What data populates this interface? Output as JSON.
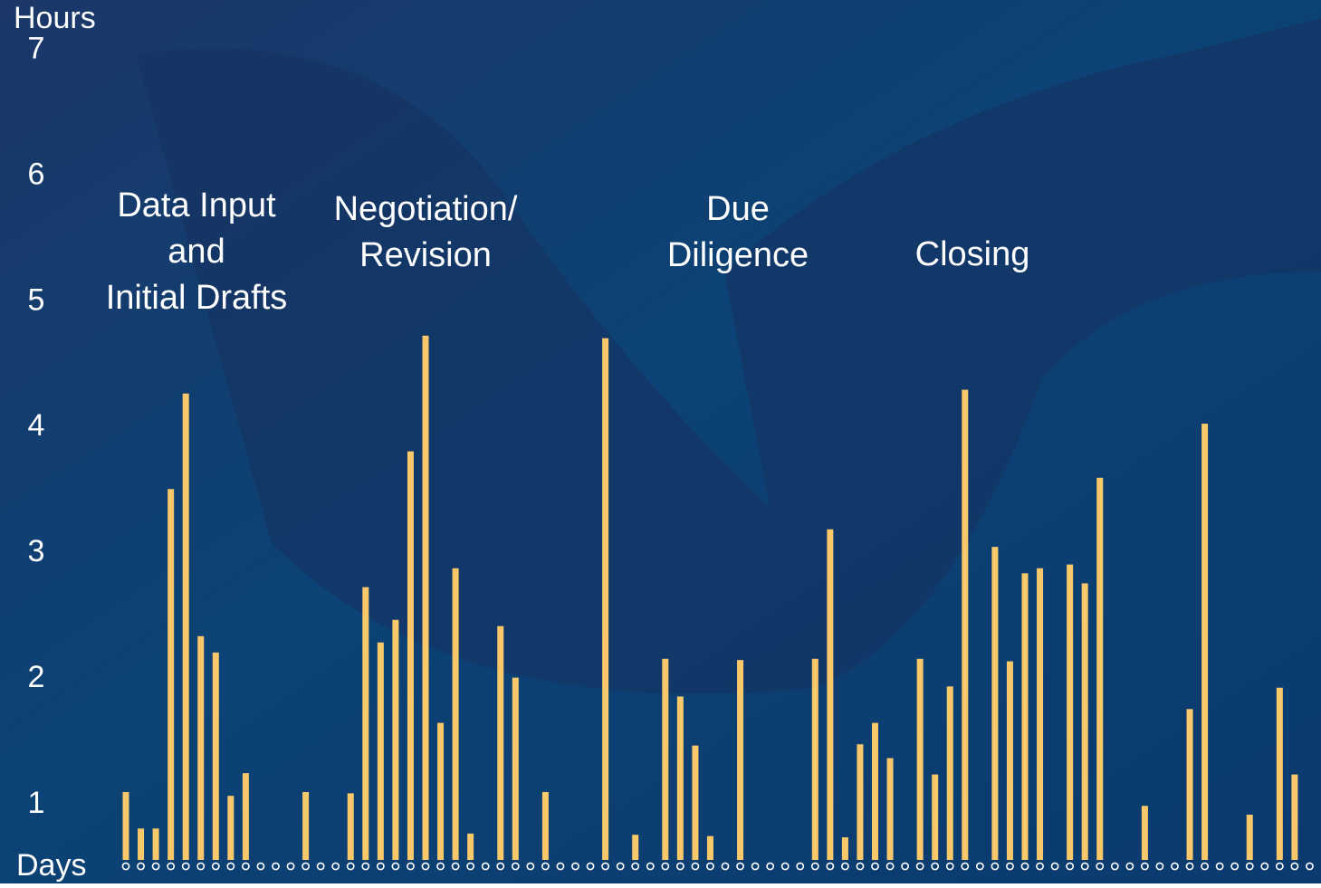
{
  "chart_data": {
    "type": "bar",
    "y_label": "Hours",
    "x_label": "Days",
    "annotations": [
      [
        "Data Input",
        "and",
        "Initial Drafts"
      ],
      [
        "Negotiation/",
        "Revision"
      ],
      [
        "Due",
        "Diligence"
      ],
      [
        "Closing"
      ]
    ],
    "categories": [
      null,
      null,
      null,
      null,
      null,
      null,
      null,
      null,
      null,
      null,
      null,
      null,
      null,
      null,
      null,
      null,
      null,
      null,
      null,
      null,
      null,
      null,
      null,
      null,
      null,
      null,
      null,
      null,
      null,
      null,
      null,
      null,
      null,
      null,
      null,
      null,
      null,
      null,
      null,
      null,
      null,
      null,
      null,
      null,
      null,
      null,
      null,
      null,
      null,
      null,
      null,
      null,
      null,
      null,
      null,
      null,
      null,
      null,
      null,
      null,
      null,
      null,
      null,
      null,
      null,
      null,
      null,
      null,
      null,
      null,
      null,
      null,
      null,
      null,
      null,
      null,
      null,
      null,
      null,
      null
    ],
    "values": [
      1.1,
      0.81,
      0.81,
      3.51,
      4.27,
      2.34,
      2.21,
      1.07,
      1.25,
      null,
      null,
      null,
      1.1,
      null,
      null,
      1.09,
      2.73,
      2.29,
      2.47,
      3.81,
      4.73,
      1.65,
      2.88,
      0.77,
      null,
      2.42,
      2.01,
      null,
      1.1,
      null,
      null,
      null,
      4.71,
      null,
      0.76,
      null,
      2.16,
      1.86,
      1.47,
      0.75,
      null,
      2.15,
      null,
      null,
      null,
      null,
      2.16,
      3.19,
      0.74,
      1.48,
      1.65,
      1.37,
      null,
      2.16,
      1.24,
      1.94,
      4.3,
      null,
      3.05,
      2.14,
      2.84,
      2.88,
      null,
      2.91,
      2.76,
      3.6,
      null,
      null,
      0.99,
      null,
      null,
      1.76,
      4.03,
      null,
      null,
      0.92,
      null,
      1.93,
      1.24,
      null
    ],
    "color": "#f9c86a",
    "ylim": [
      0.56,
      7.4
    ],
    "yticks": [
      1,
      2,
      3,
      4,
      5,
      6,
      7
    ],
    "grid": false
  }
}
